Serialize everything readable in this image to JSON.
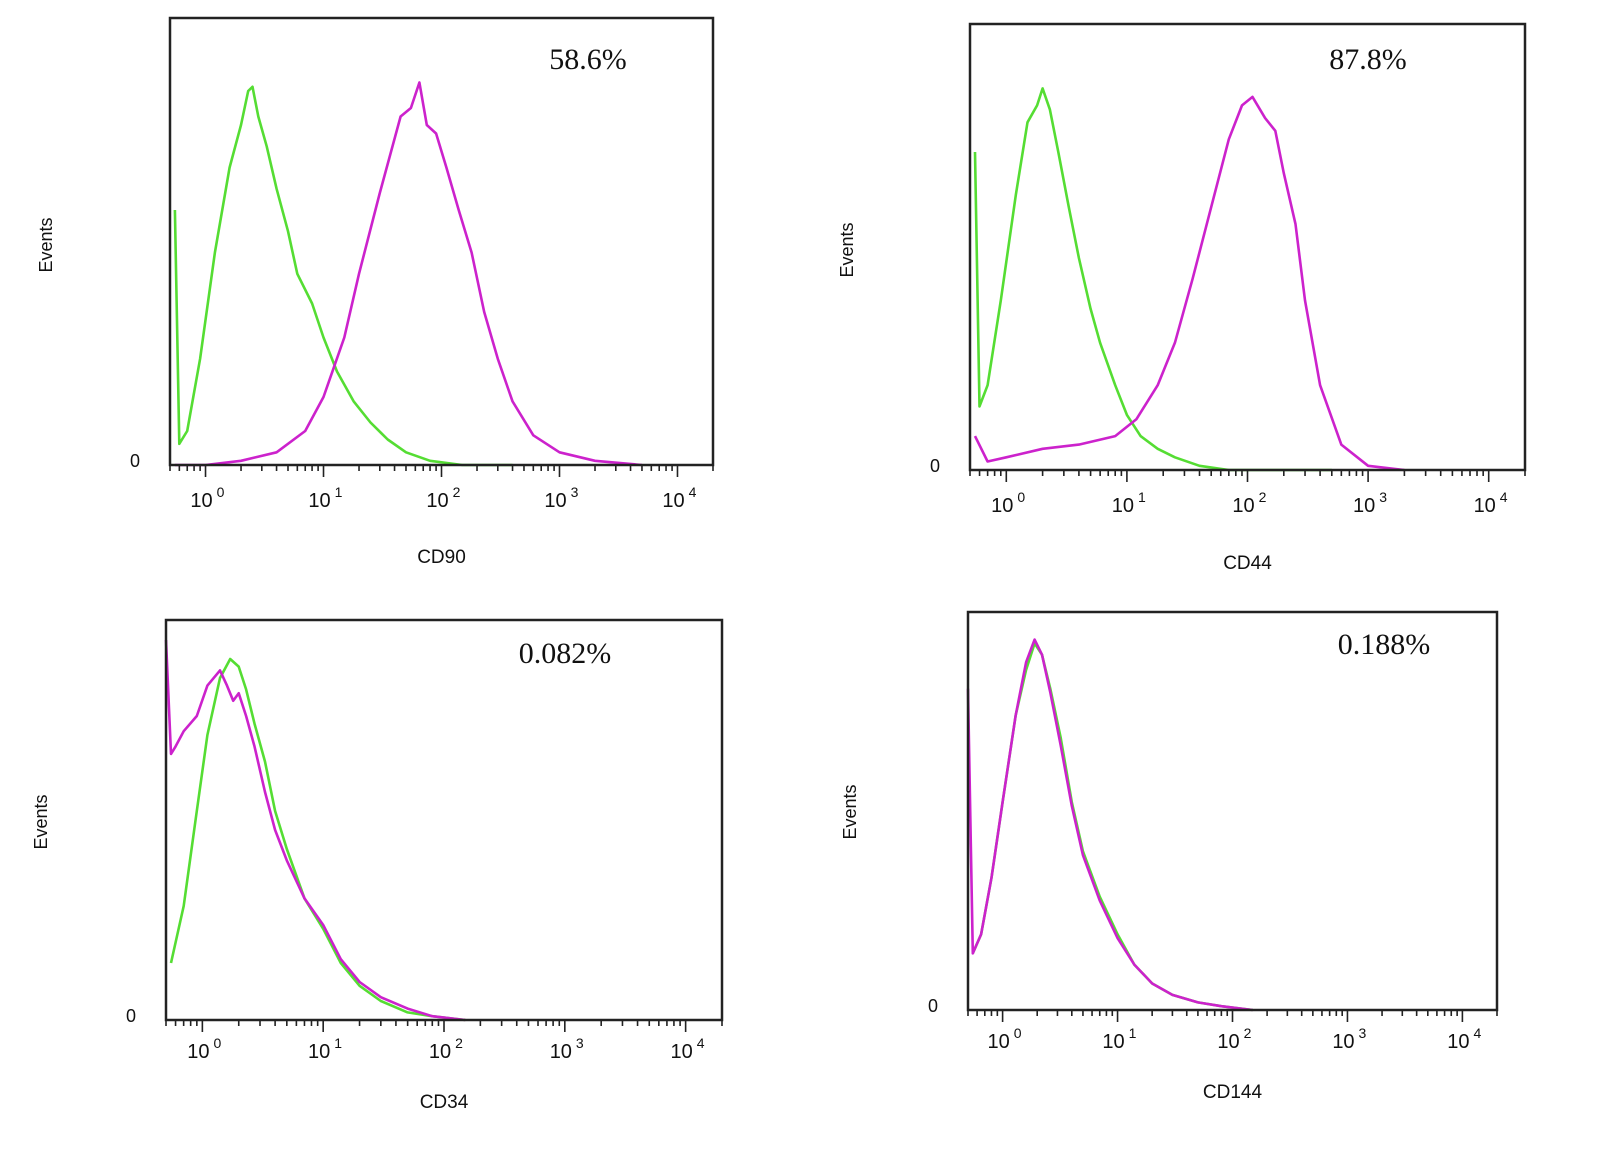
{
  "chart_data": [
    {
      "type": "area",
      "xscale": "log",
      "xlim": [
        0.5,
        20000
      ],
      "xticks": [
        {
          "value": 1,
          "label": "10",
          "exp": "0"
        },
        {
          "value": 10,
          "label": "10",
          "exp": "1"
        },
        {
          "value": 100,
          "label": "10",
          "exp": "2"
        },
        {
          "value": 1000,
          "label": "10",
          "exp": "3"
        },
        {
          "value": 10000,
          "label": "10",
          "exp": "4"
        }
      ],
      "xlabel": "CD90",
      "ylabel": "Events",
      "yzero_label": "0",
      "annotation": "58.6%",
      "series": [
        {
          "color": "#55dd33",
          "x": [
            0.55,
            0.6,
            0.7,
            0.9,
            1.2,
            1.6,
            2.0,
            2.3,
            2.5,
            2.8,
            3.3,
            4,
            5,
            6,
            8,
            10,
            13,
            18,
            25,
            35,
            50,
            80,
            150,
            400
          ],
          "y": [
            0.6,
            0.05,
            0.08,
            0.25,
            0.5,
            0.7,
            0.8,
            0.88,
            0.89,
            0.82,
            0.75,
            0.65,
            0.55,
            0.45,
            0.38,
            0.3,
            0.22,
            0.15,
            0.1,
            0.06,
            0.03,
            0.01,
            0.0,
            0.0
          ]
        },
        {
          "color": "#cc22cc",
          "x": [
            0.55,
            1,
            2,
            4,
            7,
            10,
            15,
            20,
            30,
            45,
            55,
            65,
            75,
            90,
            110,
            140,
            180,
            230,
            300,
            400,
            600,
            1000,
            2000,
            5000
          ],
          "y": [
            0.0,
            0.0,
            0.01,
            0.03,
            0.08,
            0.16,
            0.3,
            0.45,
            0.64,
            0.82,
            0.84,
            0.9,
            0.8,
            0.78,
            0.7,
            0.6,
            0.5,
            0.36,
            0.25,
            0.15,
            0.07,
            0.03,
            0.01,
            0.0
          ]
        }
      ]
    },
    {
      "type": "area",
      "xscale": "log",
      "xlim": [
        0.5,
        20000
      ],
      "xticks": [
        {
          "value": 1,
          "label": "10",
          "exp": "0"
        },
        {
          "value": 10,
          "label": "10",
          "exp": "1"
        },
        {
          "value": 100,
          "label": "10",
          "exp": "2"
        },
        {
          "value": 1000,
          "label": "10",
          "exp": "3"
        },
        {
          "value": 10000,
          "label": "10",
          "exp": "4"
        }
      ],
      "xlabel": "CD44",
      "ylabel": "Events",
      "yzero_label": "0",
      "annotation": "87.8%",
      "series": [
        {
          "color": "#55dd33",
          "x": [
            0.55,
            0.6,
            0.7,
            0.9,
            1.2,
            1.5,
            1.8,
            2.0,
            2.3,
            2.7,
            3.3,
            4,
            5,
            6,
            8,
            10,
            13,
            18,
            25,
            40,
            70,
            150,
            500
          ],
          "y": [
            0.75,
            0.15,
            0.2,
            0.4,
            0.65,
            0.82,
            0.86,
            0.9,
            0.85,
            0.75,
            0.62,
            0.5,
            0.38,
            0.3,
            0.2,
            0.13,
            0.08,
            0.05,
            0.03,
            0.01,
            0.0,
            0.0,
            0.0
          ]
        },
        {
          "color": "#cc22cc",
          "x": [
            0.55,
            0.7,
            1,
            2,
            4,
            8,
            12,
            18,
            25,
            35,
            50,
            70,
            90,
            110,
            140,
            170,
            200,
            250,
            300,
            400,
            600,
            1000,
            2000
          ],
          "y": [
            0.08,
            0.02,
            0.03,
            0.05,
            0.06,
            0.08,
            0.12,
            0.2,
            0.3,
            0.45,
            0.62,
            0.78,
            0.86,
            0.88,
            0.83,
            0.8,
            0.7,
            0.58,
            0.4,
            0.2,
            0.06,
            0.01,
            0.0
          ]
        }
      ]
    },
    {
      "type": "area",
      "xscale": "log",
      "xlim": [
        0.5,
        20000
      ],
      "xticks": [
        {
          "value": 1,
          "label": "10",
          "exp": "0"
        },
        {
          "value": 10,
          "label": "10",
          "exp": "1"
        },
        {
          "value": 100,
          "label": "10",
          "exp": "2"
        },
        {
          "value": 1000,
          "label": "10",
          "exp": "3"
        },
        {
          "value": 10000,
          "label": "10",
          "exp": "4"
        }
      ],
      "xlabel": "CD34",
      "ylabel": "Events",
      "yzero_label": "0",
      "annotation": "0.082%",
      "series": [
        {
          "color": "#55dd33",
          "x": [
            0.55,
            0.7,
            0.9,
            1.1,
            1.4,
            1.7,
            2.0,
            2.3,
            2.7,
            3.3,
            4,
            5,
            7,
            10,
            14,
            20,
            30,
            50,
            80,
            150
          ],
          "y": [
            0.15,
            0.3,
            0.55,
            0.75,
            0.9,
            0.95,
            0.93,
            0.87,
            0.78,
            0.68,
            0.55,
            0.45,
            0.32,
            0.24,
            0.15,
            0.09,
            0.05,
            0.02,
            0.01,
            0.0
          ]
        },
        {
          "color": "#cc22cc",
          "x": [
            0.5,
            0.55,
            0.6,
            0.7,
            0.9,
            1.1,
            1.4,
            1.6,
            1.8,
            2.0,
            2.3,
            2.7,
            3.3,
            4,
            5,
            7,
            10,
            14,
            20,
            30,
            50,
            80,
            150
          ],
          "y": [
            1.0,
            0.7,
            0.72,
            0.76,
            0.8,
            0.88,
            0.92,
            0.88,
            0.84,
            0.86,
            0.8,
            0.72,
            0.6,
            0.5,
            0.42,
            0.32,
            0.25,
            0.16,
            0.1,
            0.06,
            0.03,
            0.01,
            0.0
          ]
        }
      ]
    },
    {
      "type": "area",
      "xscale": "log",
      "xlim": [
        0.5,
        20000
      ],
      "xticks": [
        {
          "value": 1,
          "label": "10",
          "exp": "0"
        },
        {
          "value": 10,
          "label": "10",
          "exp": "1"
        },
        {
          "value": 100,
          "label": "10",
          "exp": "2"
        },
        {
          "value": 1000,
          "label": "10",
          "exp": "3"
        },
        {
          "value": 10000,
          "label": "10",
          "exp": "4"
        }
      ],
      "xlabel": "CD144",
      "ylabel": "Events",
      "yzero_label": "0",
      "annotation": "0.188%",
      "series": [
        {
          "color": "#55dd33",
          "x": [
            0.55,
            0.65,
            0.8,
            1.0,
            1.3,
            1.6,
            1.9,
            2.2,
            2.6,
            3.2,
            4,
            5,
            7,
            10,
            14,
            20,
            30,
            50,
            80,
            150
          ],
          "y": [
            0.15,
            0.2,
            0.35,
            0.55,
            0.78,
            0.9,
            0.97,
            0.94,
            0.85,
            0.72,
            0.55,
            0.42,
            0.3,
            0.2,
            0.12,
            0.07,
            0.04,
            0.02,
            0.01,
            0.0
          ]
        },
        {
          "color": "#cc22cc",
          "x": [
            0.5,
            0.55,
            0.65,
            0.8,
            1.0,
            1.3,
            1.6,
            1.9,
            2.2,
            2.6,
            3.2,
            4,
            5,
            7,
            10,
            14,
            20,
            30,
            50,
            80,
            150
          ],
          "y": [
            0.85,
            0.15,
            0.2,
            0.35,
            0.55,
            0.78,
            0.92,
            0.98,
            0.94,
            0.84,
            0.7,
            0.54,
            0.41,
            0.29,
            0.19,
            0.12,
            0.07,
            0.04,
            0.02,
            0.01,
            0.0
          ]
        }
      ]
    }
  ]
}
